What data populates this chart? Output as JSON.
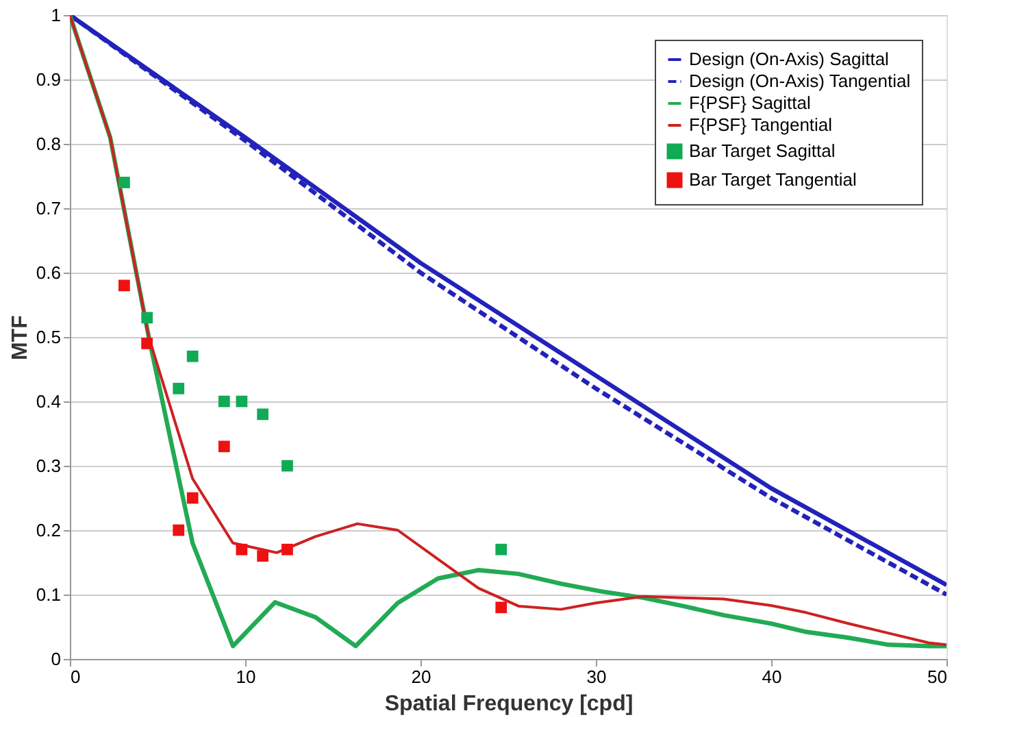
{
  "chart_data": {
    "type": "line",
    "xlabel": "Spatial Frequency [cpd]",
    "ylabel": "MTF",
    "xlim": [
      0,
      50
    ],
    "xticks": [
      0,
      10,
      20,
      30,
      40,
      50
    ],
    "ylim": [
      0,
      1
    ],
    "yticks": [
      0,
      0.1,
      0.2,
      0.3,
      0.4,
      0.5,
      0.6,
      0.7,
      0.8,
      0.9,
      1
    ],
    "grid": "y",
    "legend": "top right",
    "series": [
      {
        "name": "Design (On-Axis) Sagittal",
        "color": "#2222bb",
        "line_style": "solid",
        "marker": "none",
        "x": [
          0,
          10,
          20,
          30,
          40,
          50
        ],
        "values": [
          1,
          0.81,
          0.615,
          0.44,
          0.265,
          0.115
        ]
      },
      {
        "name": "Design (On-Axis) Tangential",
        "color": "#2222bb",
        "line_style": "dashed",
        "marker": "none",
        "x": [
          0,
          10,
          20,
          30,
          40,
          50
        ],
        "values": [
          1,
          0.805,
          0.6,
          0.42,
          0.25,
          0.1
        ]
      },
      {
        "name": "F{PSF} Sagittal",
        "color": "#22aa55",
        "line_style": "solid",
        "marker": "none",
        "x": [
          0,
          2.3,
          4.5,
          7,
          9.3,
          11.7,
          14,
          16.3,
          18.7,
          21,
          23.3,
          25.6,
          28,
          30.3,
          32.7,
          35,
          37.3,
          40,
          42,
          44.4,
          46.7,
          49,
          50
        ],
        "values": [
          1,
          0.81,
          0.5,
          0.18,
          0.02,
          0.088,
          0.065,
          0.02,
          0.087,
          0.125,
          0.138,
          0.132,
          0.117,
          0.105,
          0.095,
          0.082,
          0.068,
          0.055,
          0.042,
          0.033,
          0.022,
          0.02,
          0.02
        ]
      },
      {
        "name": "F{PSF} Tangential",
        "color": "#cc2222",
        "line_style": "solid",
        "marker": "none",
        "x": [
          0,
          2.3,
          4.5,
          7,
          9.3,
          11.8,
          14,
          16.4,
          18.7,
          21,
          23.3,
          25.6,
          28,
          30,
          32.7,
          35,
          37.3,
          40,
          42,
          44.4,
          46.7,
          49,
          50
        ],
        "values": [
          1,
          0.81,
          0.5,
          0.28,
          0.18,
          0.165,
          0.19,
          0.21,
          0.2,
          0.155,
          0.11,
          0.082,
          0.077,
          0.087,
          0.097,
          0.095,
          0.093,
          0.083,
          0.072,
          0.055,
          0.04,
          0.025,
          0.022
        ]
      },
      {
        "name": "Bar Target Sagittal",
        "type": "scatter",
        "color": "#11aa55",
        "marker": "square",
        "x": [
          3.1,
          4.4,
          6.2,
          7,
          8.8,
          9.8,
          11,
          12.4,
          24.6
        ],
        "values": [
          0.74,
          0.53,
          0.42,
          0.47,
          0.4,
          0.4,
          0.38,
          0.3,
          0.17
        ]
      },
      {
        "name": "Bar Target Tangential",
        "type": "scatter",
        "color": "#ee1111",
        "marker": "square",
        "x": [
          3.1,
          4.4,
          6.2,
          7,
          8.8,
          9.8,
          11,
          12.4,
          24.6
        ],
        "values": [
          0.58,
          0.49,
          0.2,
          0.25,
          0.33,
          0.17,
          0.16,
          0.17,
          0.08
        ]
      }
    ]
  }
}
